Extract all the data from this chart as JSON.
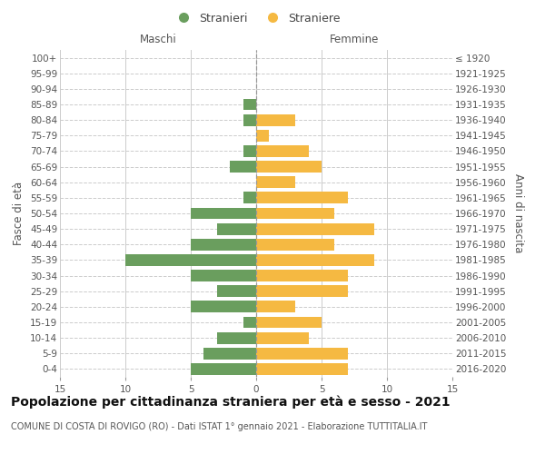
{
  "age_groups": [
    "100+",
    "95-99",
    "90-94",
    "85-89",
    "80-84",
    "75-79",
    "70-74",
    "65-69",
    "60-64",
    "55-59",
    "50-54",
    "45-49",
    "40-44",
    "35-39",
    "30-34",
    "25-29",
    "20-24",
    "15-19",
    "10-14",
    "5-9",
    "0-4"
  ],
  "birth_years": [
    "≤ 1920",
    "1921-1925",
    "1926-1930",
    "1931-1935",
    "1936-1940",
    "1941-1945",
    "1946-1950",
    "1951-1955",
    "1956-1960",
    "1961-1965",
    "1966-1970",
    "1971-1975",
    "1976-1980",
    "1981-1985",
    "1986-1990",
    "1991-1995",
    "1996-2000",
    "2001-2005",
    "2006-2010",
    "2011-2015",
    "2016-2020"
  ],
  "males": [
    0,
    0,
    0,
    1,
    1,
    0,
    1,
    2,
    0,
    1,
    5,
    3,
    5,
    10,
    5,
    3,
    5,
    1,
    3,
    4,
    5
  ],
  "females": [
    0,
    0,
    0,
    0,
    3,
    1,
    4,
    5,
    3,
    7,
    6,
    9,
    6,
    9,
    7,
    7,
    3,
    5,
    4,
    7,
    7
  ],
  "male_color": "#6a9e5e",
  "female_color": "#f5b942",
  "bar_height": 0.75,
  "xlim": 15,
  "title": "Popolazione per cittadinanza straniera per età e sesso - 2021",
  "subtitle": "COMUNE DI COSTA DI ROVIGO (RO) - Dati ISTAT 1° gennaio 2021 - Elaborazione TUTTITALIA.IT",
  "ylabel_left": "Fasce di età",
  "ylabel_right": "Anni di nascita",
  "xlabel_left": "Maschi",
  "xlabel_right": "Femmine",
  "legend_male": "Stranieri",
  "legend_female": "Straniere",
  "bg_color": "#ffffff",
  "grid_color": "#cccccc",
  "title_fontsize": 10,
  "subtitle_fontsize": 7,
  "tick_fontsize": 7.5,
  "label_fontsize": 8.5
}
